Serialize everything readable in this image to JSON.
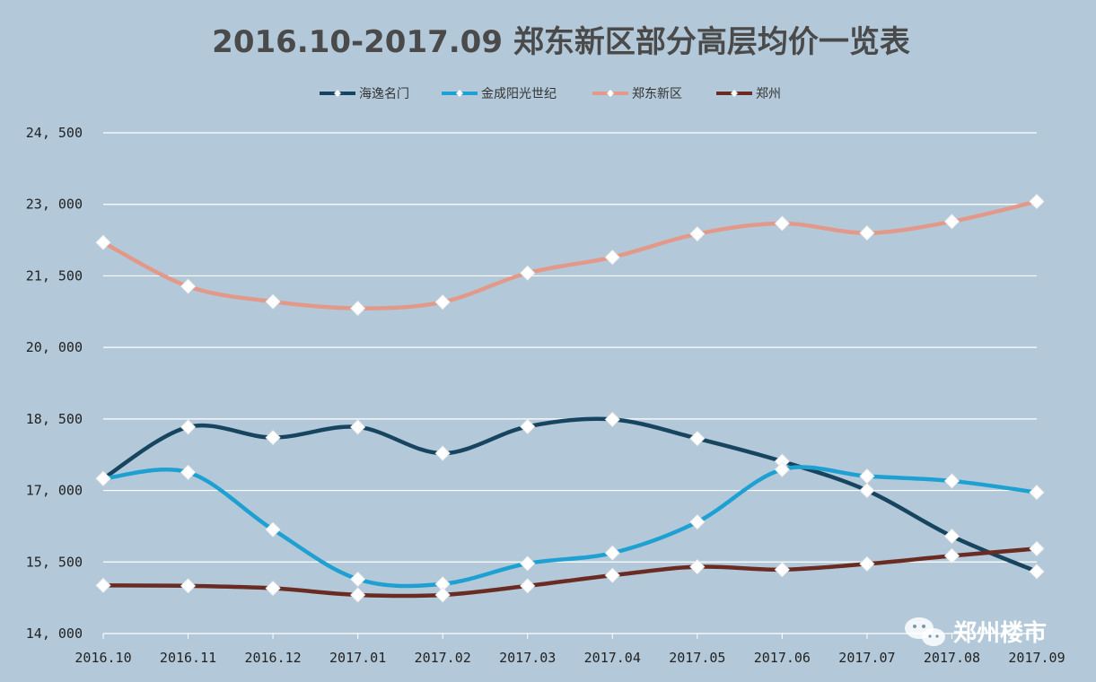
{
  "chart_data": {
    "type": "line",
    "title": "2016.10-2017.09 郑东新区部分高层均价一览表",
    "categories": [
      "2016.10",
      "2016.11",
      "2016.12",
      "2017.01",
      "2017.02",
      "2017.03",
      "2017.04",
      "2017.05",
      "2017.06",
      "2017.07",
      "2017.08",
      "2017.09"
    ],
    "ylim": [
      14000,
      24500
    ],
    "yticks": [
      14000,
      15500,
      17000,
      18500,
      20000,
      21500,
      23000,
      24500
    ],
    "ytick_labels": [
      "14, 000",
      "15, 500",
      "17, 000",
      "18, 500",
      "20, 000",
      "21, 500",
      "23, 000",
      "24, 500"
    ],
    "grid": true,
    "legend_position": "top",
    "series": [
      {
        "name": "海逸名门",
        "color": "#17455f",
        "values": [
          17250,
          18330,
          18110,
          18330,
          17780,
          18340,
          18490,
          18090,
          17610,
          17000,
          16040,
          15300
        ]
      },
      {
        "name": "金成阳光世纪",
        "color": "#1ea1d2",
        "values": [
          17250,
          17380,
          16180,
          15140,
          15040,
          15470,
          15690,
          16340,
          17440,
          17300,
          17200,
          16960
        ]
      },
      {
        "name": "郑东新区",
        "color": "#e3998a",
        "values": [
          22200,
          21280,
          20960,
          20820,
          20950,
          21560,
          21890,
          22380,
          22600,
          22400,
          22640,
          23060
        ]
      },
      {
        "name": "郑州",
        "color": "#6a2c22",
        "values": [
          15010,
          15000,
          14950,
          14810,
          14810,
          15000,
          15220,
          15400,
          15340,
          15460,
          15630,
          15780
        ]
      }
    ]
  },
  "watermark": "郑州楼市"
}
